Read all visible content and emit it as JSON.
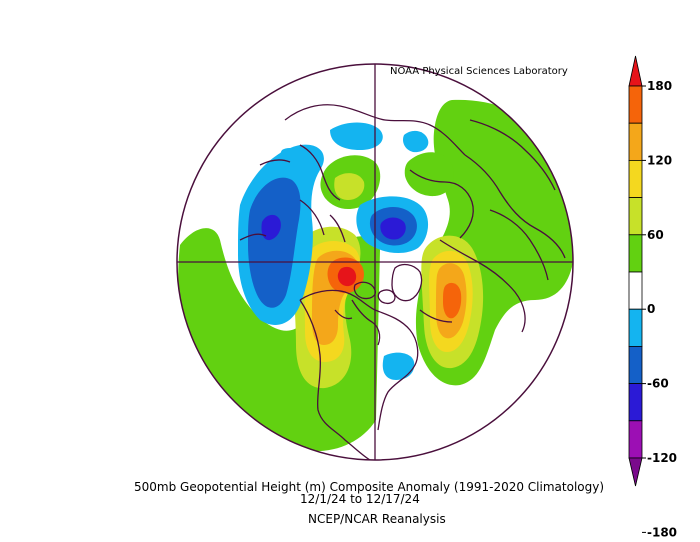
{
  "credit": "NOAA Physical Sciences Laboratory",
  "caption": {
    "title": "500mb Geopotential Height (m) Composite Anomaly (1991-2020 Climatology)",
    "dates": "12/1/24  to 12/17/24",
    "source": "NCEP/NCAR Reanalysis"
  },
  "colorbar": {
    "labels": [
      "180",
      "120",
      "60",
      "0",
      "-60",
      "-120",
      "-180"
    ],
    "colors": [
      "#e6141a",
      "#f5640a",
      "#f4a71a",
      "#f4d81f",
      "#c7e129",
      "#62d111",
      "#ffffff",
      "#14b4f0",
      "#1460c8",
      "#2b1ad6",
      "#9c0fb4",
      "#7a0a8c"
    ]
  },
  "map": {
    "projection": "polar-stereographic",
    "hemisphere": "north",
    "coastline_color": "#4a0f3c"
  }
}
